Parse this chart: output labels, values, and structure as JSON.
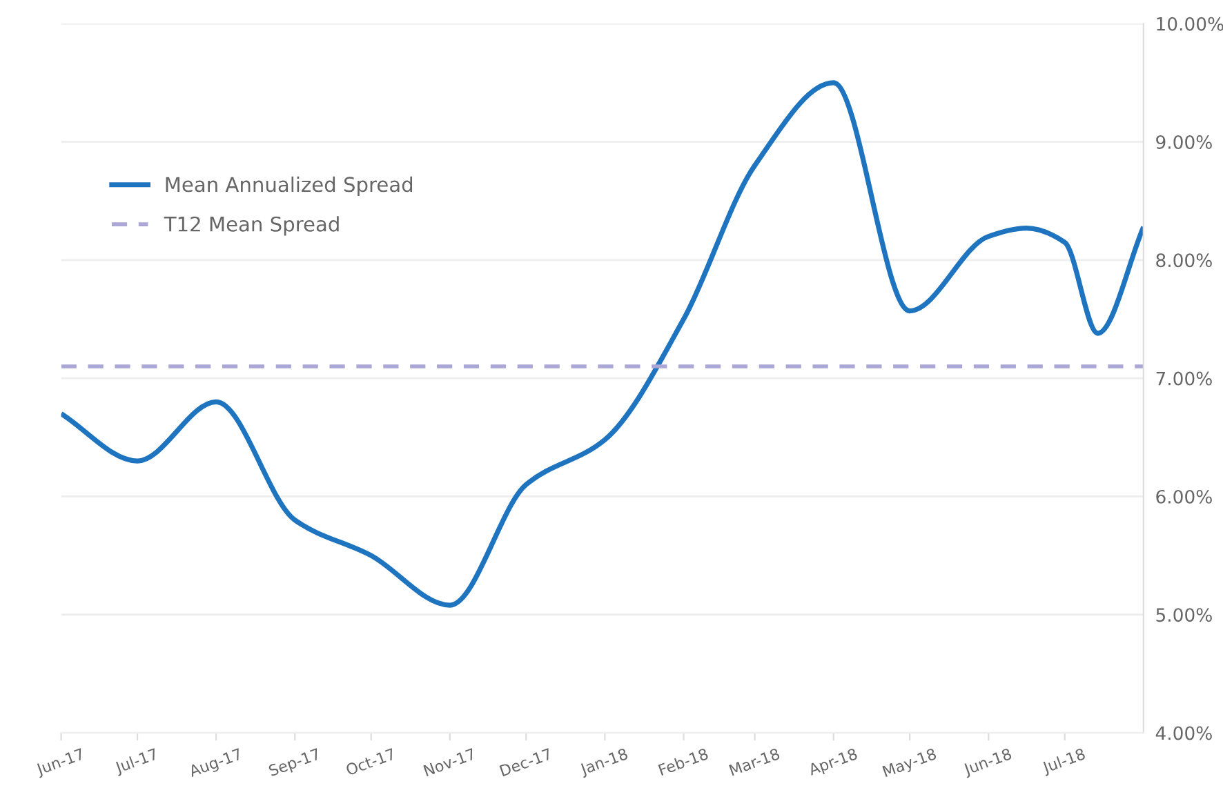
{
  "chart_data": {
    "type": "line",
    "x": [
      "2017-06-01",
      "2017-07-01",
      "2017-08-01",
      "2017-09-01",
      "2017-10-01",
      "2017-11-01",
      "2017-12-01",
      "2018-01-01",
      "2018-02-01",
      "2018-03-01",
      "2018-04-01",
      "2018-05-01",
      "2018-06-01",
      "2018-06-16",
      "2018-07-01",
      "2018-07-14",
      "2018-08-01"
    ],
    "series": [
      {
        "name": "Mean Annualized Spread",
        "color": "#1f74c0",
        "values": [
          6.7,
          6.3,
          6.8,
          5.8,
          5.5,
          5.08,
          6.1,
          6.48,
          7.5,
          8.8,
          9.5,
          7.57,
          8.2,
          8.27,
          8.15,
          7.38,
          8.28
        ]
      }
    ],
    "ref_lines": [
      {
        "axis": "y",
        "value": 7.1,
        "label": "T12 Mean Spread",
        "color": "#aaa6d6",
        "line_style": "dashed"
      }
    ],
    "xlim": [
      "2017-06-01",
      "2018-08-01"
    ],
    "xticks": [
      {
        "value": "2017-06-01",
        "label": "Jun-17"
      },
      {
        "value": "2017-07-01",
        "label": "Jul-17"
      },
      {
        "value": "2017-08-01",
        "label": "Aug-17"
      },
      {
        "value": "2017-09-01",
        "label": "Sep-17"
      },
      {
        "value": "2017-10-01",
        "label": "Oct-17"
      },
      {
        "value": "2017-11-01",
        "label": "Nov-17"
      },
      {
        "value": "2017-12-01",
        "label": "Dec-17"
      },
      {
        "value": "2018-01-01",
        "label": "Jan-18"
      },
      {
        "value": "2018-02-01",
        "label": "Feb-18"
      },
      {
        "value": "2018-03-01",
        "label": "Mar-18"
      },
      {
        "value": "2018-04-01",
        "label": "Apr-18"
      },
      {
        "value": "2018-05-01",
        "label": "May-18"
      },
      {
        "value": "2018-06-01",
        "label": "Jun-18"
      },
      {
        "value": "2018-07-01",
        "label": "Jul-18"
      }
    ],
    "ylim": [
      4,
      10
    ],
    "yticks": [
      {
        "value": 4,
        "label": "4.00%"
      },
      {
        "value": 5,
        "label": "5.00%"
      },
      {
        "value": 6,
        "label": "6.00%"
      },
      {
        "value": 7,
        "label": "7.00%"
      },
      {
        "value": 8,
        "label": "8.00%"
      },
      {
        "value": 9,
        "label": "9.00%"
      },
      {
        "value": 10,
        "label": "10.00%"
      }
    ],
    "grid": "y",
    "legend": "top left",
    "line_style": "solid",
    "marker": "none"
  }
}
